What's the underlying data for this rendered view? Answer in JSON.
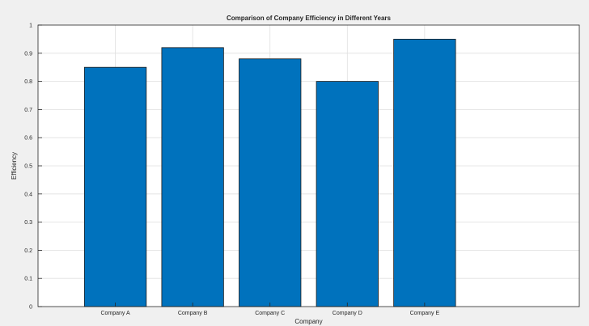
{
  "chart_data": {
    "type": "bar",
    "title": "Comparison of Company Efficiency in Different Years",
    "xlabel": "Company",
    "ylabel": "Efficiency",
    "categories": [
      "Company A",
      "Company B",
      "Company C",
      "Company D",
      "Company E"
    ],
    "values": [
      0.85,
      0.92,
      0.88,
      0.8,
      0.95
    ],
    "ylim": [
      0,
      1
    ],
    "yticks": [
      "0",
      "0.1",
      "0.2",
      "0.3",
      "0.4",
      "0.5",
      "0.6",
      "0.7",
      "0.8",
      "0.9",
      "1"
    ],
    "grid": true,
    "legend": "none",
    "colors": {
      "bar": "#0072bd",
      "bar_edge": "#1a1a1a",
      "grid": "#dfdfdf",
      "axes_bg": "#ffffff",
      "figure_bg": "#f0f0f0",
      "axis": "#262626"
    }
  }
}
